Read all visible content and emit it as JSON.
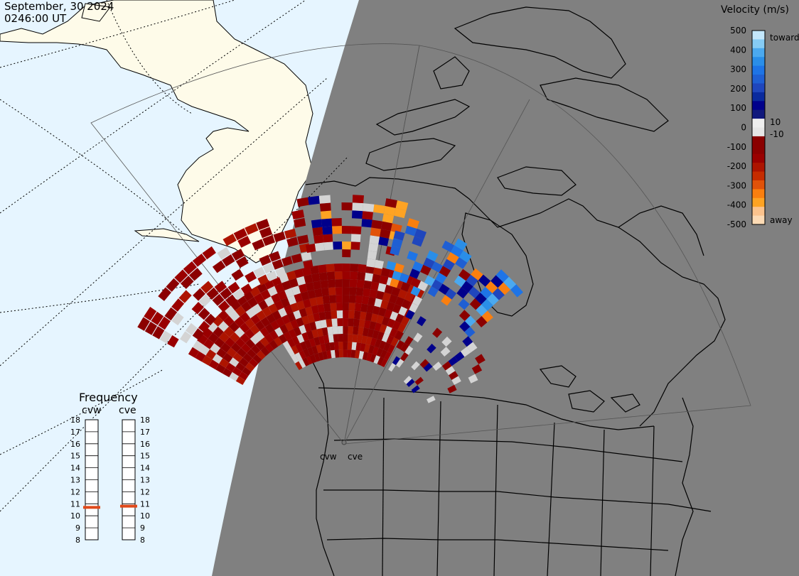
{
  "header": {
    "date": "September, 30 2024",
    "time": "0246:00 UT"
  },
  "colorbar": {
    "title": "Velocity (m/s)",
    "ticks": [
      "500",
      "400",
      "300",
      "200",
      "100",
      "0",
      "-100",
      "-200",
      "-300",
      "-400",
      "-500"
    ],
    "small_ticks": [
      "10",
      "-10"
    ],
    "end_labels": {
      "top": "toward",
      "bottom": "away"
    },
    "colors": [
      "#fddbb5",
      "#fcc38d",
      "#fea323",
      "#fa7f0f",
      "#e15209",
      "#c62c00",
      "#ad1400",
      "#9a0000",
      "#8b0000",
      "#8a0000",
      "#e6e6e6",
      "#eeeeee",
      "#10187c",
      "#00008b",
      "#0a2a9e",
      "#1f46bd",
      "#1f5fd3",
      "#1e74e6",
      "#2a8ee8",
      "#4ba9ef",
      "#86ccf5",
      "#c3e7fb"
    ]
  },
  "frequency": {
    "title": "Frequency",
    "radars": [
      {
        "name": "cvw",
        "value": 10.7
      },
      {
        "name": "cve",
        "value": 10.8
      }
    ],
    "scale": [
      "18",
      "17",
      "16",
      "15",
      "14",
      "13",
      "12",
      "11",
      "10",
      "9",
      "8"
    ]
  },
  "radar_sites": [
    "cvw",
    "cve"
  ],
  "colors": {
    "ocean": "#e6f5ff",
    "land_day": "#fefbe9",
    "night": "#808080",
    "frequency_marker": "#e0491a",
    "low_velocity_gray": "#d4d4d4"
  }
}
